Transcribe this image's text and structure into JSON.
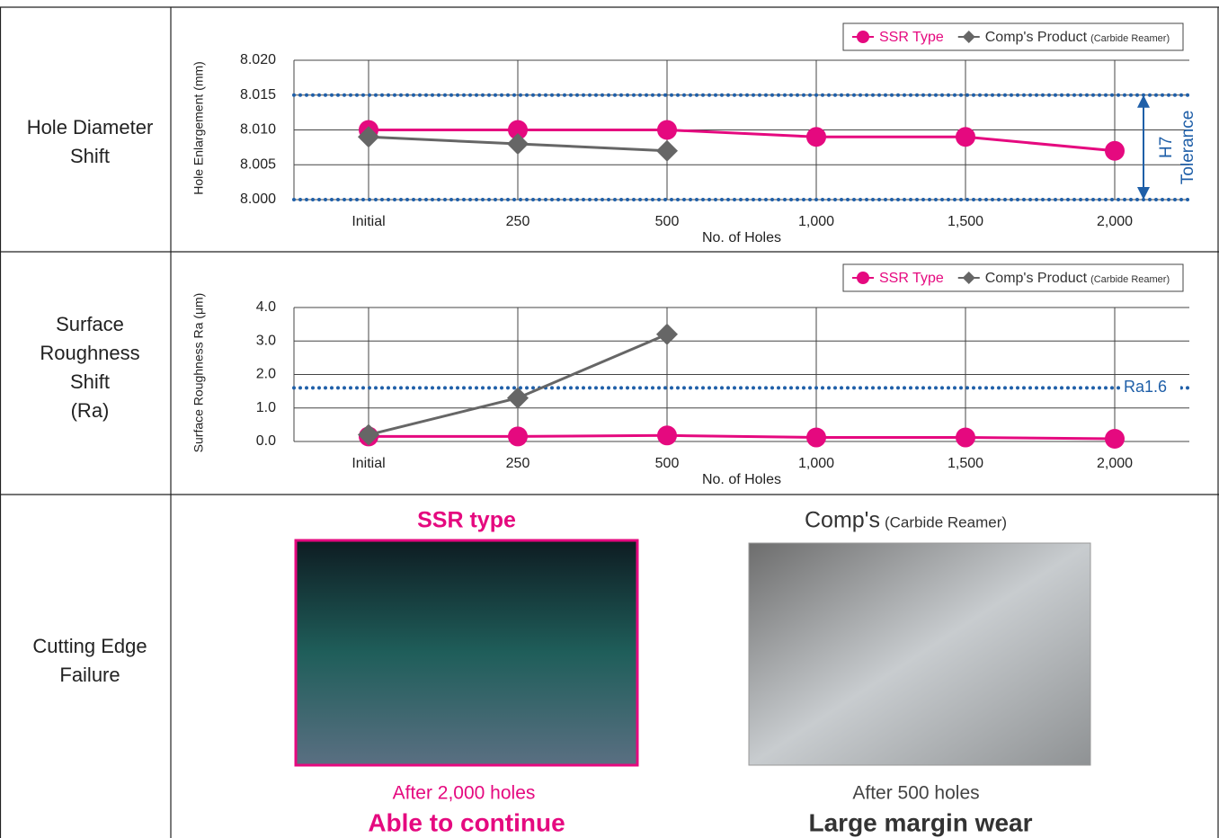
{
  "table": {
    "rows": [
      {
        "label": [
          "Hole Diameter",
          "Shift"
        ]
      },
      {
        "label": [
          "Surface",
          "Roughness",
          "Shift",
          "(Ra)"
        ]
      },
      {
        "label": [
          "Cutting Edge",
          "Failure"
        ]
      }
    ]
  },
  "chart_data": [
    {
      "type": "line",
      "ylabel": "Hole Enlargement (mm)",
      "xlabel": "No. of Holes",
      "categories": [
        "Initial",
        "250",
        "500",
        "1,000",
        "1,500",
        "2,000"
      ],
      "series": [
        {
          "name": "SSR Type",
          "color": "#e5097f",
          "marker": "circle",
          "values": [
            8.01,
            8.01,
            8.01,
            8.009,
            8.009,
            8.007
          ]
        },
        {
          "name": "Comp's Product",
          "note": "(Carbide Reamer)",
          "color": "#666666",
          "marker": "diamond",
          "values": [
            8.009,
            8.008,
            8.007,
            null,
            null,
            null
          ]
        }
      ],
      "ylim": [
        8.0,
        8.02
      ],
      "yticks": [
        {
          "value": 8.0,
          "label": "8.000"
        },
        {
          "value": 8.005,
          "label": "8.005"
        },
        {
          "value": 8.01,
          "label": "8.010"
        },
        {
          "value": 8.015,
          "label": "8.015"
        },
        {
          "value": 8.02,
          "label": "8.020"
        }
      ],
      "reference_lines": [
        {
          "value": 8.015,
          "color": "#1f5fa8"
        },
        {
          "value": 8.0,
          "color": "#1f5fa8"
        }
      ],
      "annotation": [
        "H7",
        "Tolerance"
      ],
      "grid": true
    },
    {
      "type": "line",
      "ylabel": "Surface Roughness Ra (μm)",
      "xlabel": "No. of Holes",
      "categories": [
        "Initial",
        "250",
        "500",
        "1,000",
        "1,500",
        "2,000"
      ],
      "series": [
        {
          "name": "SSR Type",
          "color": "#e5097f",
          "marker": "circle",
          "values": [
            0.15,
            0.15,
            0.18,
            0.12,
            0.12,
            0.08
          ]
        },
        {
          "name": "Comp's Product",
          "note": "(Carbide Reamer)",
          "color": "#666666",
          "marker": "diamond",
          "values": [
            0.2,
            1.3,
            3.2,
            null,
            null,
            null
          ]
        }
      ],
      "ylim": [
        0,
        4
      ],
      "yticks": [
        {
          "value": 0,
          "label": "0.0"
        },
        {
          "value": 1,
          "label": "1.0"
        },
        {
          "value": 2,
          "label": "2.0"
        },
        {
          "value": 3,
          "label": "3.0"
        },
        {
          "value": 4,
          "label": "4.0"
        }
      ],
      "reference_lines": [
        {
          "value": 1.6,
          "label": "Ra1.6",
          "color": "#1f5fa8"
        }
      ],
      "grid": true
    }
  ],
  "photos": [
    {
      "title": "SSR type",
      "caption": "After 2,000 holes",
      "verdict": "Able to continue"
    },
    {
      "title": "Comp's",
      "note": "(Carbide Reamer)",
      "caption": "After 500 holes",
      "verdict": "Large margin wear"
    }
  ]
}
